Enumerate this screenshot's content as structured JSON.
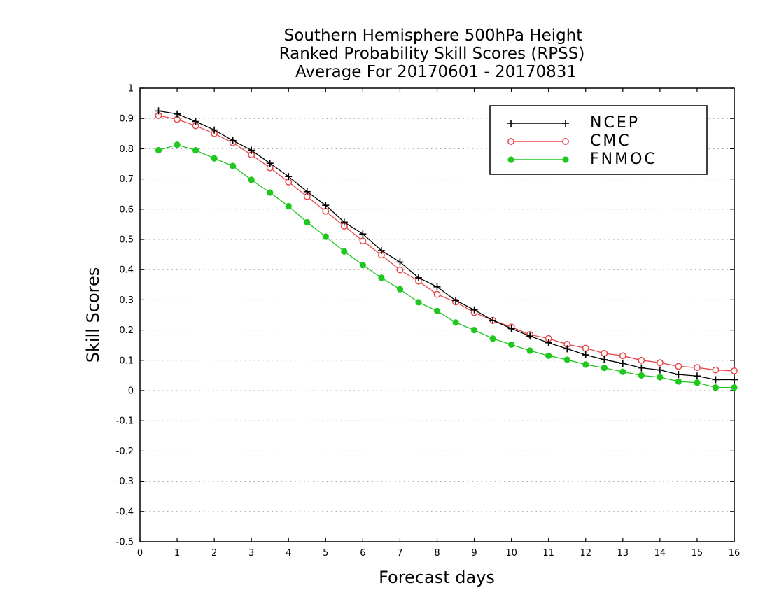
{
  "chart_data": {
    "type": "line",
    "title": [
      "Southern Hemisphere 500hPa Height",
      "Ranked Probability Skill Scores (RPSS)",
      "Average For 20170601 - 20170831"
    ],
    "xlabel": "Forecast days",
    "ylabel": "Skill Scores",
    "xlim": [
      0,
      16
    ],
    "ylim": [
      -0.5,
      1
    ],
    "x_ticks": [
      "0",
      "1",
      "2",
      "3",
      "4",
      "5",
      "6",
      "7",
      "8",
      "9",
      "10",
      "11",
      "12",
      "13",
      "14",
      "15",
      "16"
    ],
    "y_ticks": [
      "-0.5",
      "-0.4",
      "-0.3",
      "-0.2",
      "-0.1",
      "0",
      "0.1",
      "0.2",
      "0.3",
      "0.4",
      "0.5",
      "0.6",
      "0.7",
      "0.8",
      "0.9",
      "1"
    ],
    "grid": "horizontal dotted",
    "legend_position": "top-right",
    "x": [
      0.5,
      1,
      1.5,
      2,
      2.5,
      3,
      3.5,
      4,
      4.5,
      5,
      5.5,
      6,
      6.5,
      7,
      7.5,
      8,
      8.5,
      9,
      9.5,
      10,
      10.5,
      11,
      11.5,
      12,
      12.5,
      13,
      13.5,
      14,
      14.5,
      15,
      15.5,
      16
    ],
    "series": [
      {
        "name": "NCEP",
        "color": "#000000",
        "marker": "plus",
        "values": [
          0.925,
          0.915,
          0.89,
          0.862,
          0.827,
          0.795,
          0.752,
          0.708,
          0.658,
          0.613,
          0.557,
          0.518,
          0.463,
          0.425,
          0.373,
          0.343,
          0.298,
          0.267,
          0.232,
          0.205,
          0.18,
          0.158,
          0.138,
          0.118,
          0.102,
          0.09,
          0.075,
          0.068,
          0.053,
          0.048,
          0.036,
          0.036
        ]
      },
      {
        "name": "CMC",
        "color": "#e8474a",
        "marker": "open-circle",
        "values": [
          0.91,
          0.897,
          0.876,
          0.85,
          0.82,
          0.78,
          0.737,
          0.69,
          0.642,
          0.593,
          0.544,
          0.495,
          0.448,
          0.399,
          0.362,
          0.318,
          0.293,
          0.258,
          0.232,
          0.21,
          0.185,
          0.172,
          0.153,
          0.14,
          0.123,
          0.115,
          0.1,
          0.092,
          0.08,
          0.076,
          0.068,
          0.065
        ]
      },
      {
        "name": "FNMOC",
        "color": "#1fc71f",
        "marker": "filled-circle",
        "values": [
          0.795,
          0.813,
          0.795,
          0.768,
          0.743,
          0.697,
          0.655,
          0.61,
          0.557,
          0.509,
          0.46,
          0.415,
          0.373,
          0.335,
          0.292,
          0.263,
          0.225,
          0.2,
          0.172,
          0.152,
          0.132,
          0.115,
          0.102,
          0.086,
          0.075,
          0.062,
          0.05,
          0.044,
          0.03,
          0.026,
          0.01,
          0.01
        ]
      }
    ]
  }
}
